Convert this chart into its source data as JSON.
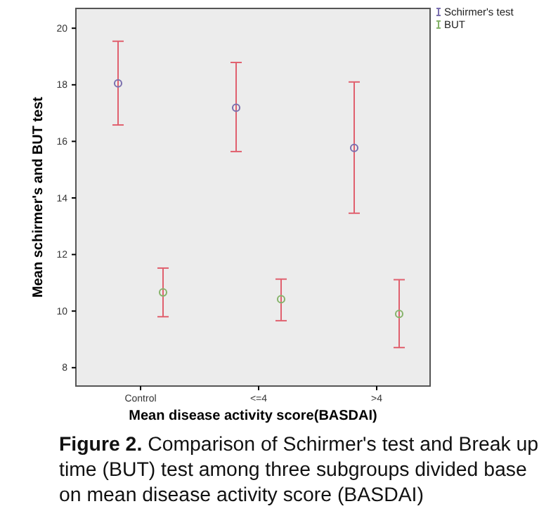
{
  "chart_data": {
    "type": "scatter",
    "xlabel": "Mean disease activity score(BASDAI)",
    "ylabel": "Mean schirmer's and BUT test",
    "categories": [
      "Control",
      "<=4",
      ">4"
    ],
    "series": [
      {
        "name": "Schirmer's test",
        "color": "#7a6fae",
        "values": [
          18.05,
          17.19,
          15.77
        ],
        "errors": [
          [
            16.58,
            19.54
          ],
          [
            15.64,
            18.79
          ],
          [
            13.46,
            18.1
          ]
        ]
      },
      {
        "name": "BUT",
        "color": "#86b36a",
        "values": [
          10.66,
          10.42,
          9.9
        ],
        "errors": [
          [
            9.8,
            11.52
          ],
          [
            9.66,
            11.13
          ],
          [
            8.71,
            11.11
          ]
        ]
      }
    ],
    "ylim": [
      7.35,
      20.7
    ],
    "yticks": [
      8,
      10,
      12,
      14,
      16,
      18,
      20
    ],
    "marker": "circle",
    "legend": "top right",
    "grid": false,
    "annotations": [
      "Figure 2. Comparison of Schirmer's test and Break up time (BUT) test among three subgroups divided base on mean disease activity score (BASDAI)"
    ]
  }
}
